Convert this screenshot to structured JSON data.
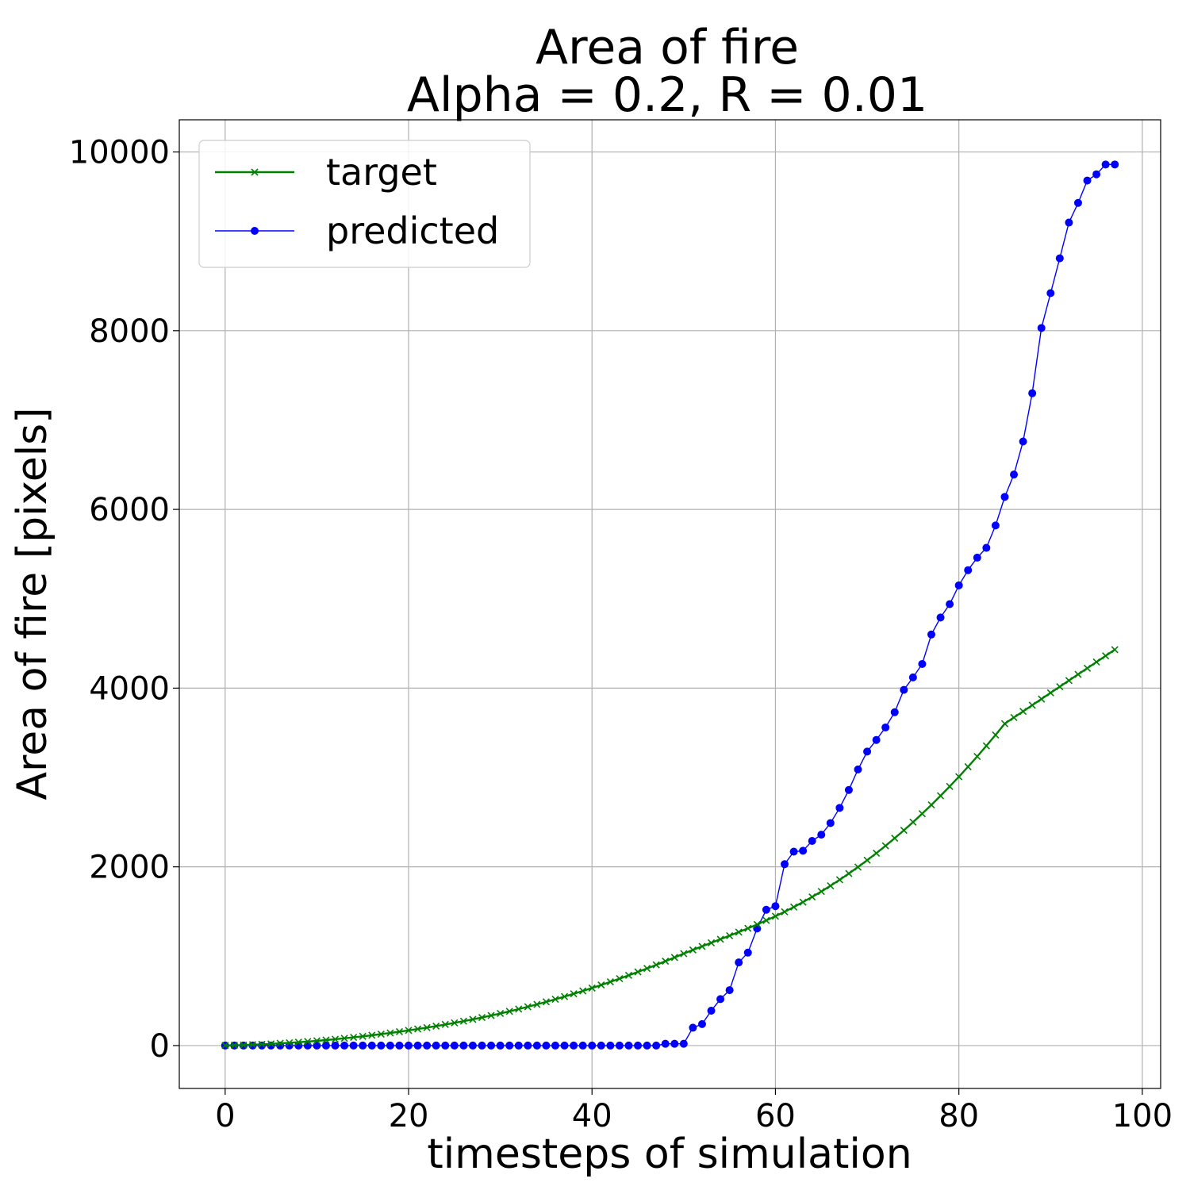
{
  "chart_data": {
    "type": "line",
    "title": "Area of fire",
    "subtitle": "Alpha = 0.2, R = 0.01",
    "xlabel": "timesteps of simulation",
    "ylabel": "Area of fire [pixels]",
    "xlim": [
      -5,
      102
    ],
    "ylim": [
      -480,
      10360
    ],
    "xticks": [
      0,
      20,
      40,
      60,
      80,
      100
    ],
    "yticks": [
      0,
      2000,
      4000,
      6000,
      8000,
      10000
    ],
    "grid": true,
    "legend_position": "upper-left",
    "x": [
      0,
      1,
      2,
      3,
      4,
      5,
      6,
      7,
      8,
      9,
      10,
      11,
      12,
      13,
      14,
      15,
      16,
      17,
      18,
      19,
      20,
      21,
      22,
      23,
      24,
      25,
      26,
      27,
      28,
      29,
      30,
      31,
      32,
      33,
      34,
      35,
      36,
      37,
      38,
      39,
      40,
      41,
      42,
      43,
      44,
      45,
      46,
      47,
      48,
      49,
      50,
      51,
      52,
      53,
      54,
      55,
      56,
      57,
      58,
      59,
      60,
      61,
      62,
      63,
      64,
      65,
      66,
      67,
      68,
      69,
      70,
      71,
      72,
      73,
      74,
      75,
      76,
      77,
      78,
      79,
      80,
      81,
      82,
      83,
      84,
      85,
      86,
      87,
      88,
      89,
      90,
      91,
      92,
      93,
      94,
      95,
      96,
      97
    ],
    "series": [
      {
        "name": "target",
        "color": "#008000",
        "marker": "x",
        "values": [
          1,
          3,
          6,
          10,
          14,
          19,
          25,
          31,
          38,
          45,
          53,
          62,
          71,
          81,
          92,
          103,
          115,
          128,
          141,
          155,
          170,
          185,
          201,
          218,
          236,
          254,
          273,
          293,
          314,
          336,
          359,
          383,
          408,
          434,
          461,
          489,
          518,
          548,
          579,
          611,
          644,
          678,
          713,
          749,
          786,
          824,
          863,
          903,
          944,
          986,
          1029,
          1070,
          1110,
          1150,
          1190,
          1230,
          1270,
          1312,
          1355,
          1400,
          1447,
          1497,
          1550,
          1605,
          1663,
          1724,
          1788,
          1855,
          1925,
          1998,
          2074,
          2153,
          2235,
          2320,
          2409,
          2500,
          2595,
          2693,
          2795,
          2900,
          3008,
          3120,
          3235,
          3354,
          3476,
          3602,
          3732,
          3865,
          4002,
          4142,
          4286,
          4433,
          4584,
          4738,
          4896,
          5058,
          5224,
          4430
        ],
        "values_note": ""
      },
      {
        "name": "predicted",
        "color": "#0000ff",
        "marker": "o",
        "values": [
          0,
          0,
          0,
          0,
          0,
          0,
          0,
          0,
          0,
          0,
          0,
          0,
          0,
          0,
          0,
          0,
          0,
          0,
          0,
          0,
          0,
          0,
          0,
          0,
          0,
          0,
          0,
          0,
          0,
          0,
          0,
          0,
          0,
          0,
          0,
          0,
          0,
          0,
          0,
          0,
          0,
          0,
          0,
          0,
          0,
          0,
          0,
          0,
          20,
          20,
          20,
          200,
          240,
          390,
          520,
          620,
          930,
          1040,
          1310,
          1520,
          1560,
          2030,
          2170,
          2180,
          2290,
          2360,
          2490,
          2660,
          2860,
          3090,
          3290,
          3420,
          3560,
          3730,
          3980,
          4120,
          4270,
          4600,
          4790,
          4940,
          5150,
          5320,
          5460,
          5570,
          5820,
          6140,
          6390,
          6760,
          7300,
          8030,
          8420,
          8810,
          9210,
          9430,
          9680,
          9750,
          9860,
          9860
        ]
      }
    ]
  }
}
